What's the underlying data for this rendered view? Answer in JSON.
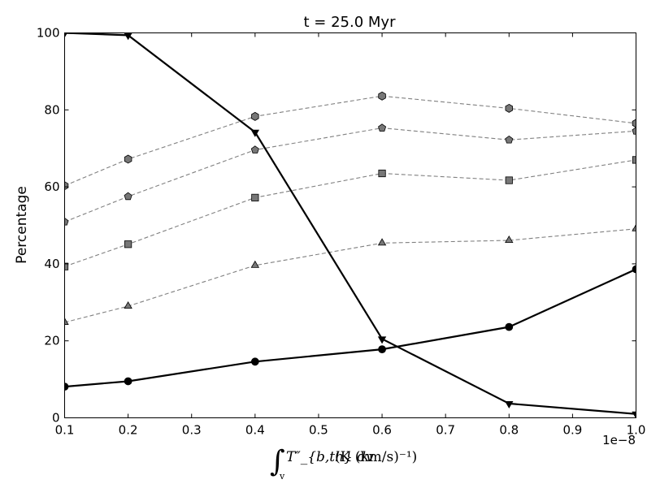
{
  "chart_data": {
    "type": "line",
    "title": "t = 25.0 Myr",
    "ylabel": "Percentage",
    "xlabel": {
      "integral": "∫",
      "subscript": "v",
      "body": "T″_{b,th} dv",
      "unit": "(K (km/s)⁻¹)"
    },
    "x_offset_label": "1e−8",
    "xlim": [
      0.1,
      1.0
    ],
    "ylim": [
      0,
      100
    ],
    "x": [
      0.1,
      0.2,
      0.4,
      0.6,
      0.8,
      1.0
    ],
    "x_ticks": [
      0.1,
      0.2,
      0.3,
      0.4,
      0.5,
      0.6,
      0.7,
      0.8,
      0.9,
      1.0
    ],
    "x_tick_labels": [
      "0.1",
      "0.2",
      "0.3",
      "0.4",
      "0.5",
      "0.6",
      "0.7",
      "0.8",
      "0.9",
      "1.0"
    ],
    "y_ticks": [
      0,
      20,
      40,
      60,
      80,
      100
    ],
    "y_tick_labels": [
      "0",
      "20",
      "40",
      "60",
      "80",
      "100"
    ],
    "grid": false,
    "series": [
      {
        "values": [
          100,
          99.4,
          74.2,
          20.5,
          3.7,
          1.0
        ],
        "marker": "triangle-down",
        "style": "solid",
        "color": "#000000",
        "fill": "#000000"
      },
      {
        "values": [
          8.1,
          9.5,
          14.6,
          17.8,
          23.6,
          38.6
        ],
        "marker": "circle",
        "style": "solid",
        "color": "#000000",
        "fill": "#000000"
      },
      {
        "values": [
          24.8,
          29.0,
          39.6,
          45.4,
          46.1,
          49.1
        ],
        "marker": "triangle-up",
        "style": "dashed",
        "color": "#808080",
        "fill": "#777777"
      },
      {
        "values": [
          39.3,
          45.1,
          57.2,
          63.5,
          61.7,
          67.0
        ],
        "marker": "square",
        "style": "dashed",
        "color": "#808080",
        "fill": "#777777"
      },
      {
        "values": [
          50.9,
          57.5,
          69.6,
          75.3,
          72.2,
          74.5
        ],
        "marker": "pentagon",
        "style": "dashed",
        "color": "#808080",
        "fill": "#777777"
      },
      {
        "values": [
          60.3,
          67.2,
          78.3,
          83.6,
          80.4,
          76.5
        ],
        "marker": "hexagon",
        "style": "dashed",
        "color": "#808080",
        "fill": "#777777"
      }
    ]
  }
}
